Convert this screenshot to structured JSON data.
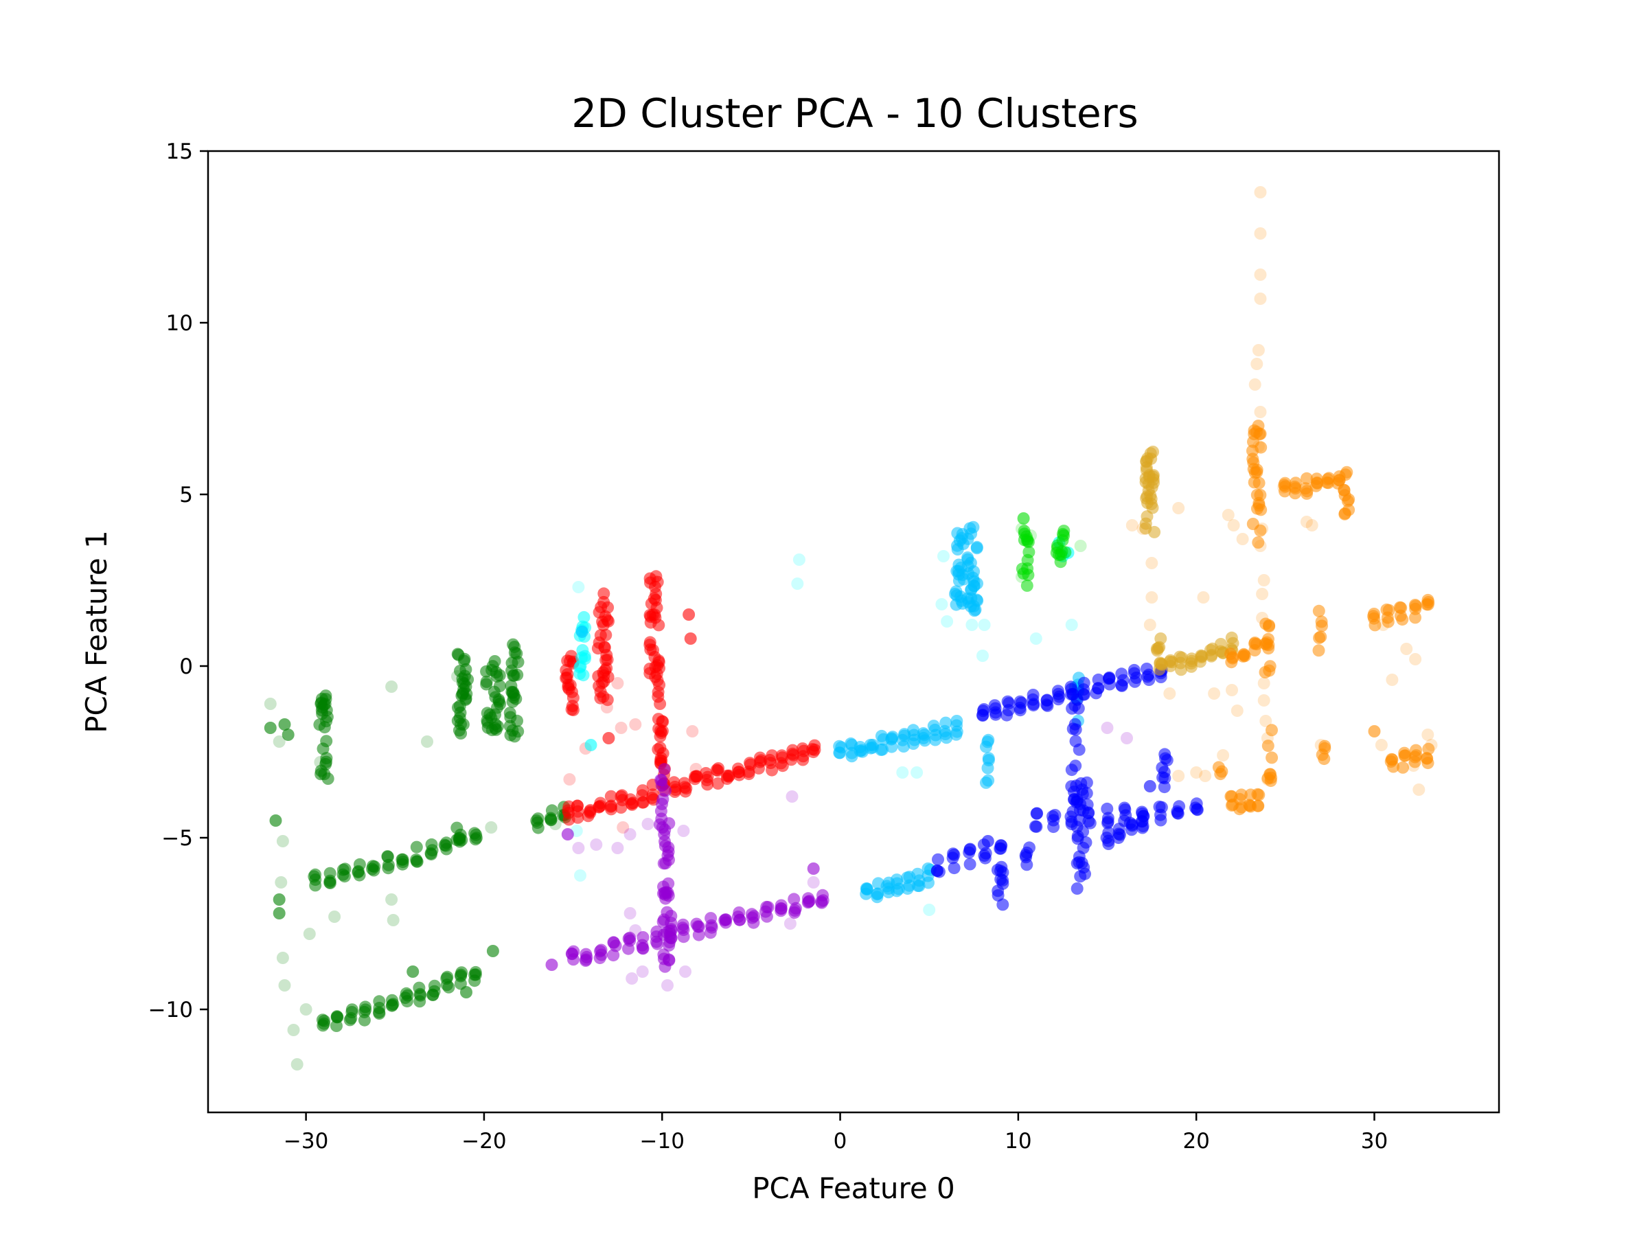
{
  "chart_data": {
    "type": "scatter",
    "title": "2D Cluster PCA - 10 Clusters",
    "xlabel": "PCA Feature 0",
    "ylabel": "PCA Feature 1",
    "xlim": [
      -35.5,
      37
    ],
    "ylim": [
      -13,
      15
    ],
    "xticks": [
      -30,
      -20,
      -10,
      0,
      10,
      20,
      30
    ],
    "yticks": [
      -10,
      -5,
      0,
      5,
      10,
      15
    ],
    "xtick_labels": [
      "−30",
      "−20",
      "−10",
      "0",
      "10",
      "20",
      "30"
    ],
    "ytick_labels": [
      "−10",
      "−5",
      "0",
      "5",
      "10",
      "15"
    ],
    "grid": false,
    "legend": "none",
    "series": [
      {
        "color": "#008000",
        "lines": [
          {
            "x": [
              -29.5,
              -20.5
            ],
            "y": [
              -6.3,
              -5.0
            ],
            "step": 0.8
          },
          {
            "x": [
              -29.0,
              -20.5
            ],
            "y": [
              -10.5,
              -9.0
            ],
            "step": 0.8
          },
          {
            "x": [
              -17,
              -15.5
            ],
            "y": [
              -4.5,
              -4.3
            ],
            "step": 0.8
          }
        ],
        "blobs": [
          {
            "cx": -29.0,
            "cy": -2.1,
            "w": 0.5,
            "h": 1.4,
            "n": 24
          },
          {
            "cx": -21.2,
            "cy": -0.8,
            "w": 0.6,
            "h": 1.3,
            "n": 28
          },
          {
            "cx": -19.5,
            "cy": -0.9,
            "w": 0.8,
            "h": 1.2,
            "n": 28
          },
          {
            "cx": -18.3,
            "cy": -0.7,
            "w": 0.5,
            "h": 1.6,
            "n": 26
          },
          {
            "cx": -21.5,
            "cy": -5.0,
            "w": 0.3,
            "h": 0.5,
            "n": 4
          }
        ],
        "points": [
          [
            -32,
            -1.8
          ],
          [
            -31.2,
            -1.7
          ],
          [
            -31.0,
            -2.0
          ],
          [
            -31.7,
            -4.5
          ],
          [
            -31.5,
            -6.8
          ],
          [
            -31.5,
            -7.2
          ],
          [
            -21,
            -9.5
          ],
          [
            -19.5,
            -8.3
          ],
          [
            -24.0,
            -8.9
          ]
        ]
      },
      {
        "color": "#ff0000",
        "lines": [
          {
            "x": [
              -15.3,
              -1.5
            ],
            "y": [
              -4.3,
              -2.5
            ],
            "step": 0.6
          }
        ],
        "blobs": [
          {
            "cx": -15.2,
            "cy": -0.4,
            "w": 0.5,
            "h": 1.1,
            "n": 18
          },
          {
            "cx": -13.3,
            "cy": 0.6,
            "w": 0.6,
            "h": 1.8,
            "n": 32
          },
          {
            "cx": -10.4,
            "cy": 1.2,
            "w": 0.6,
            "h": 1.8,
            "n": 32
          },
          {
            "cx": -10.1,
            "cy": -1.4,
            "w": 0.3,
            "h": 1.2,
            "n": 14
          },
          {
            "cx": -10.0,
            "cy": -2.9,
            "w": 0.3,
            "h": 0.5,
            "n": 8
          }
        ],
        "points": [
          [
            -8.5,
            1.5
          ],
          [
            -8.4,
            0.8
          ],
          [
            -13.0,
            -2.1
          ]
        ]
      },
      {
        "color": "#00ffff",
        "lines": [],
        "blobs": [
          {
            "cx": -14.5,
            "cy": 0.6,
            "w": 0.4,
            "h": 1.0,
            "n": 14
          }
        ],
        "points": [
          [
            -14.0,
            -2.3
          ],
          [
            12.5,
            3.2
          ],
          [
            12.3,
            3.6
          ],
          [
            12.8,
            3.3
          ]
        ]
      },
      {
        "color": "#9400d3",
        "lines": [
          {
            "x": [
              -15,
              -1
            ],
            "y": [
              -8.5,
              -6.8
            ],
            "step": 0.8
          }
        ],
        "blobs": [
          {
            "cx": -9.7,
            "cy": -7.5,
            "w": 0.5,
            "h": 1.4,
            "n": 26
          },
          {
            "cx": -9.8,
            "cy": -5.3,
            "w": 0.4,
            "h": 0.9,
            "n": 10
          },
          {
            "cx": -10.0,
            "cy": -3.8,
            "w": 0.4,
            "h": 1.2,
            "n": 12
          }
        ],
        "points": [
          [
            -16.2,
            -8.7
          ],
          [
            -15.3,
            -4.9
          ],
          [
            -1.5,
            -5.9
          ]
        ]
      },
      {
        "color": "#00bfff",
        "lines": [
          {
            "x": [
              0,
              6.5
            ],
            "y": [
              -2.5,
              -1.8
            ],
            "step": 0.6
          },
          {
            "x": [
              1.5,
              5.0
            ],
            "y": [
              -6.6,
              -6.1
            ],
            "step": 0.6
          }
        ],
        "blobs": [
          {
            "cx": 6.7,
            "cy": 2.8,
            "w": 0.5,
            "h": 1.2,
            "n": 22
          },
          {
            "cx": 7.4,
            "cy": 2.8,
            "w": 0.6,
            "h": 1.5,
            "n": 28
          },
          {
            "cx": 8.2,
            "cy": -2.5,
            "w": 0.4,
            "h": 1.0,
            "n": 8
          },
          {
            "cx": 13.3,
            "cy": -0.9,
            "w": 0.3,
            "h": 0.8,
            "n": 8
          }
        ],
        "points": [
          [
            -14.5,
            1.0
          ]
        ]
      },
      {
        "color": "#00dd00",
        "lines": [],
        "blobs": [
          {
            "cx": 10.4,
            "cy": 3.2,
            "w": 0.4,
            "h": 1.0,
            "n": 14
          },
          {
            "cx": 12.4,
            "cy": 3.5,
            "w": 0.5,
            "h": 0.6,
            "n": 12
          }
        ],
        "points": [
          [
            10.3,
            4.3
          ]
        ]
      },
      {
        "color": "#0000ff",
        "lines": [
          {
            "x": [
              8,
              18
            ],
            "y": [
              -1.4,
              -0.1
            ],
            "step": 0.7
          },
          {
            "x": [
              5.5,
              9
            ],
            "y": [
              -5.8,
              -5.3
            ],
            "step": 0.8
          },
          {
            "x": [
              11,
              20
            ],
            "y": [
              -4.5,
              -4.2
            ],
            "step": 1.0
          },
          {
            "x": [
              15,
              17
            ],
            "y": [
              -5.0,
              -4.5
            ],
            "step": 0.8
          }
        ],
        "blobs": [
          {
            "cx": 13.2,
            "cy": -2.4,
            "w": 0.5,
            "h": 1.8,
            "n": 20
          },
          {
            "cx": 13.6,
            "cy": -5.0,
            "w": 0.6,
            "h": 2.0,
            "n": 24
          },
          {
            "cx": 18.2,
            "cy": -3.2,
            "w": 0.4,
            "h": 0.8,
            "n": 8
          },
          {
            "cx": 9.0,
            "cy": -6.3,
            "w": 0.4,
            "h": 0.8,
            "n": 10
          },
          {
            "cx": 10.5,
            "cy": -5.5,
            "w": 0.3,
            "h": 0.4,
            "n": 5
          }
        ],
        "points": [
          [
            17.4,
            -3.5
          ],
          [
            8.3,
            -5.1
          ]
        ]
      },
      {
        "color": "#daa520",
        "lines": [
          {
            "x": [
              18,
              22
            ],
            "y": [
              -0.1,
              0.6
            ],
            "step": 0.6
          }
        ],
        "blobs": [
          {
            "cx": 17.4,
            "cy": 5.0,
            "w": 0.5,
            "h": 1.5,
            "n": 30
          },
          {
            "cx": 17.9,
            "cy": 0.4,
            "w": 0.3,
            "h": 0.6,
            "n": 6
          }
        ],
        "points": []
      },
      {
        "color": "#ff8c00",
        "lines": [
          {
            "x": [
              22,
              24
            ],
            "y": [
              0.3,
              0.8
            ],
            "step": 0.6
          },
          {
            "x": [
              30,
              33
            ],
            "y": [
              1.4,
              1.7
            ],
            "step": 0.7
          },
          {
            "x": [
              25,
              28
            ],
            "y": [
              5.2,
              5.3
            ],
            "step": 0.6
          },
          {
            "x": [
              31,
              33
            ],
            "y": [
              -2.8,
              -2.6
            ],
            "step": 0.7
          },
          {
            "x": [
              22,
              23.5
            ],
            "y": [
              -4.0,
              -3.9
            ],
            "step": 0.6
          }
        ],
        "blobs": [
          {
            "cx": 23.4,
            "cy": 5.2,
            "w": 0.5,
            "h": 2.0,
            "n": 26
          },
          {
            "cx": 28.4,
            "cy": 5.1,
            "w": 0.4,
            "h": 0.8,
            "n": 10
          },
          {
            "cx": 24.0,
            "cy": 0.7,
            "w": 0.3,
            "h": 1.0,
            "n": 8
          },
          {
            "cx": 24.1,
            "cy": -2.6,
            "w": 0.3,
            "h": 0.9,
            "n": 8
          },
          {
            "cx": 27.0,
            "cy": 1.0,
            "w": 0.3,
            "h": 0.7,
            "n": 6
          },
          {
            "cx": 27.1,
            "cy": -2.5,
            "w": 0.3,
            "h": 0.3,
            "n": 4
          },
          {
            "cx": 21.3,
            "cy": -3.2,
            "w": 0.3,
            "h": 0.3,
            "n": 3
          }
        ],
        "points": [
          [
            30,
            -1.9
          ]
        ]
      }
    ],
    "faint_points": {
      "green": [
        [
          -32,
          -1.1
        ],
        [
          -31.5,
          -2.2
        ],
        [
          -31.3,
          -5.1
        ],
        [
          -31.4,
          -6.3
        ],
        [
          -31.3,
          -8.5
        ],
        [
          -31.2,
          -9.3
        ],
        [
          -30,
          -10.0
        ],
        [
          -30.5,
          -11.6
        ],
        [
          -30.7,
          -10.6
        ],
        [
          -25.2,
          -0.6
        ],
        [
          -25.2,
          -6.8
        ],
        [
          -25.1,
          -7.4
        ],
        [
          -28.4,
          -7.3
        ],
        [
          -29.8,
          -7.8
        ],
        [
          -23.2,
          -2.2
        ],
        [
          -29.2,
          -2.8
        ],
        [
          -16,
          -4.6
        ],
        [
          -19.6,
          -4.7
        ],
        [
          -18.3,
          0.2
        ],
        [
          -21.5,
          -0.3
        ]
      ],
      "red": [
        [
          -15.2,
          -3.3
        ],
        [
          -14.3,
          -2.4
        ],
        [
          -13.1,
          -1.2
        ],
        [
          -12.5,
          -0.5
        ],
        [
          -12.3,
          -1.8
        ],
        [
          -11.5,
          -1.7
        ],
        [
          -8.3,
          -1.9
        ],
        [
          -8.1,
          -3.0
        ],
        [
          -10.5,
          2.5
        ],
        [
          -12.2,
          -4.7
        ]
      ],
      "cyan": [
        [
          -14.7,
          2.3
        ],
        [
          -14.8,
          -4.8
        ],
        [
          -14.6,
          -6.1
        ],
        [
          -2.3,
          3.1
        ],
        [
          -2.4,
          2.4
        ],
        [
          3.5,
          -3.1
        ],
        [
          4.3,
          -3.1
        ],
        [
          5.0,
          -7.1
        ],
        [
          5.8,
          3.2
        ],
        [
          5.7,
          1.8
        ],
        [
          6.0,
          1.3
        ],
        [
          7.4,
          1.2
        ],
        [
          8.1,
          1.2
        ],
        [
          8.0,
          0.3
        ],
        [
          11.0,
          0.8
        ],
        [
          13.0,
          1.2
        ]
      ],
      "purple": [
        [
          -14.7,
          -5.3
        ],
        [
          -13.7,
          -5.2
        ],
        [
          -12.5,
          -5.3
        ],
        [
          -11.8,
          -7.2
        ],
        [
          -11.5,
          -7.7
        ],
        [
          -11.1,
          -8.9
        ],
        [
          -10.8,
          -4.6
        ],
        [
          -11.8,
          -4.9
        ],
        [
          -9.8,
          -6.6
        ],
        [
          -8.8,
          -4.8
        ],
        [
          -8.7,
          -8.9
        ],
        [
          -9.7,
          -9.3
        ],
        [
          -2.8,
          -7.5
        ],
        [
          -2.7,
          -3.8
        ],
        [
          -1.5,
          -6.3
        ],
        [
          -11.7,
          -9.1
        ],
        [
          15.0,
          -1.8
        ],
        [
          16.1,
          -2.1
        ]
      ],
      "lightgreen": [
        [
          10.2,
          4.0
        ],
        [
          10.7,
          3.8
        ],
        [
          13.5,
          3.5
        ],
        [
          10.2,
          2.6
        ]
      ],
      "orange": [
        [
          23.6,
          13.8
        ],
        [
          23.6,
          12.6
        ],
        [
          23.6,
          11.4
        ],
        [
          23.6,
          10.7
        ],
        [
          23.5,
          9.2
        ],
        [
          23.4,
          8.8
        ],
        [
          23.3,
          8.2
        ],
        [
          23.6,
          7.4
        ],
        [
          23.5,
          6.4
        ],
        [
          23.7,
          4.0
        ],
        [
          23.6,
          3.5
        ],
        [
          23.8,
          2.5
        ],
        [
          23.7,
          2.1
        ],
        [
          23.7,
          1.4
        ],
        [
          23.8,
          -0.5
        ],
        [
          23.8,
          -1.0
        ],
        [
          23.9,
          -1.6
        ],
        [
          24.0,
          -2.1
        ],
        [
          24.0,
          -3.3
        ],
        [
          21.0,
          -0.8
        ],
        [
          21.5,
          -2.6
        ],
        [
          22.0,
          -0.7
        ],
        [
          22.3,
          -1.3
        ],
        [
          19.0,
          -3.2
        ],
        [
          20.0,
          -3.1
        ],
        [
          20.5,
          -3.2
        ],
        [
          20.4,
          2.0
        ],
        [
          18.5,
          -0.8
        ],
        [
          16.4,
          4.1
        ],
        [
          17.0,
          4.0
        ],
        [
          17.5,
          3.0
        ],
        [
          17.5,
          2.0
        ],
        [
          17.4,
          1.2
        ],
        [
          19.0,
          4.6
        ],
        [
          26.2,
          4.2
        ],
        [
          26.5,
          4.1
        ],
        [
          27.0,
          -2.3
        ],
        [
          30.4,
          -2.3
        ],
        [
          30.5,
          1.2
        ],
        [
          31.0,
          -0.4
        ],
        [
          31.8,
          0.5
        ],
        [
          32.3,
          0.2
        ],
        [
          32.5,
          -3.6
        ],
        [
          33.0,
          -2.0
        ],
        [
          33.2,
          -2.3
        ],
        [
          32.2,
          -2.9
        ],
        [
          24.9,
          5.2
        ],
        [
          21.8,
          4.4
        ],
        [
          22.1,
          4.1
        ],
        [
          22.6,
          3.7
        ]
      ]
    }
  }
}
